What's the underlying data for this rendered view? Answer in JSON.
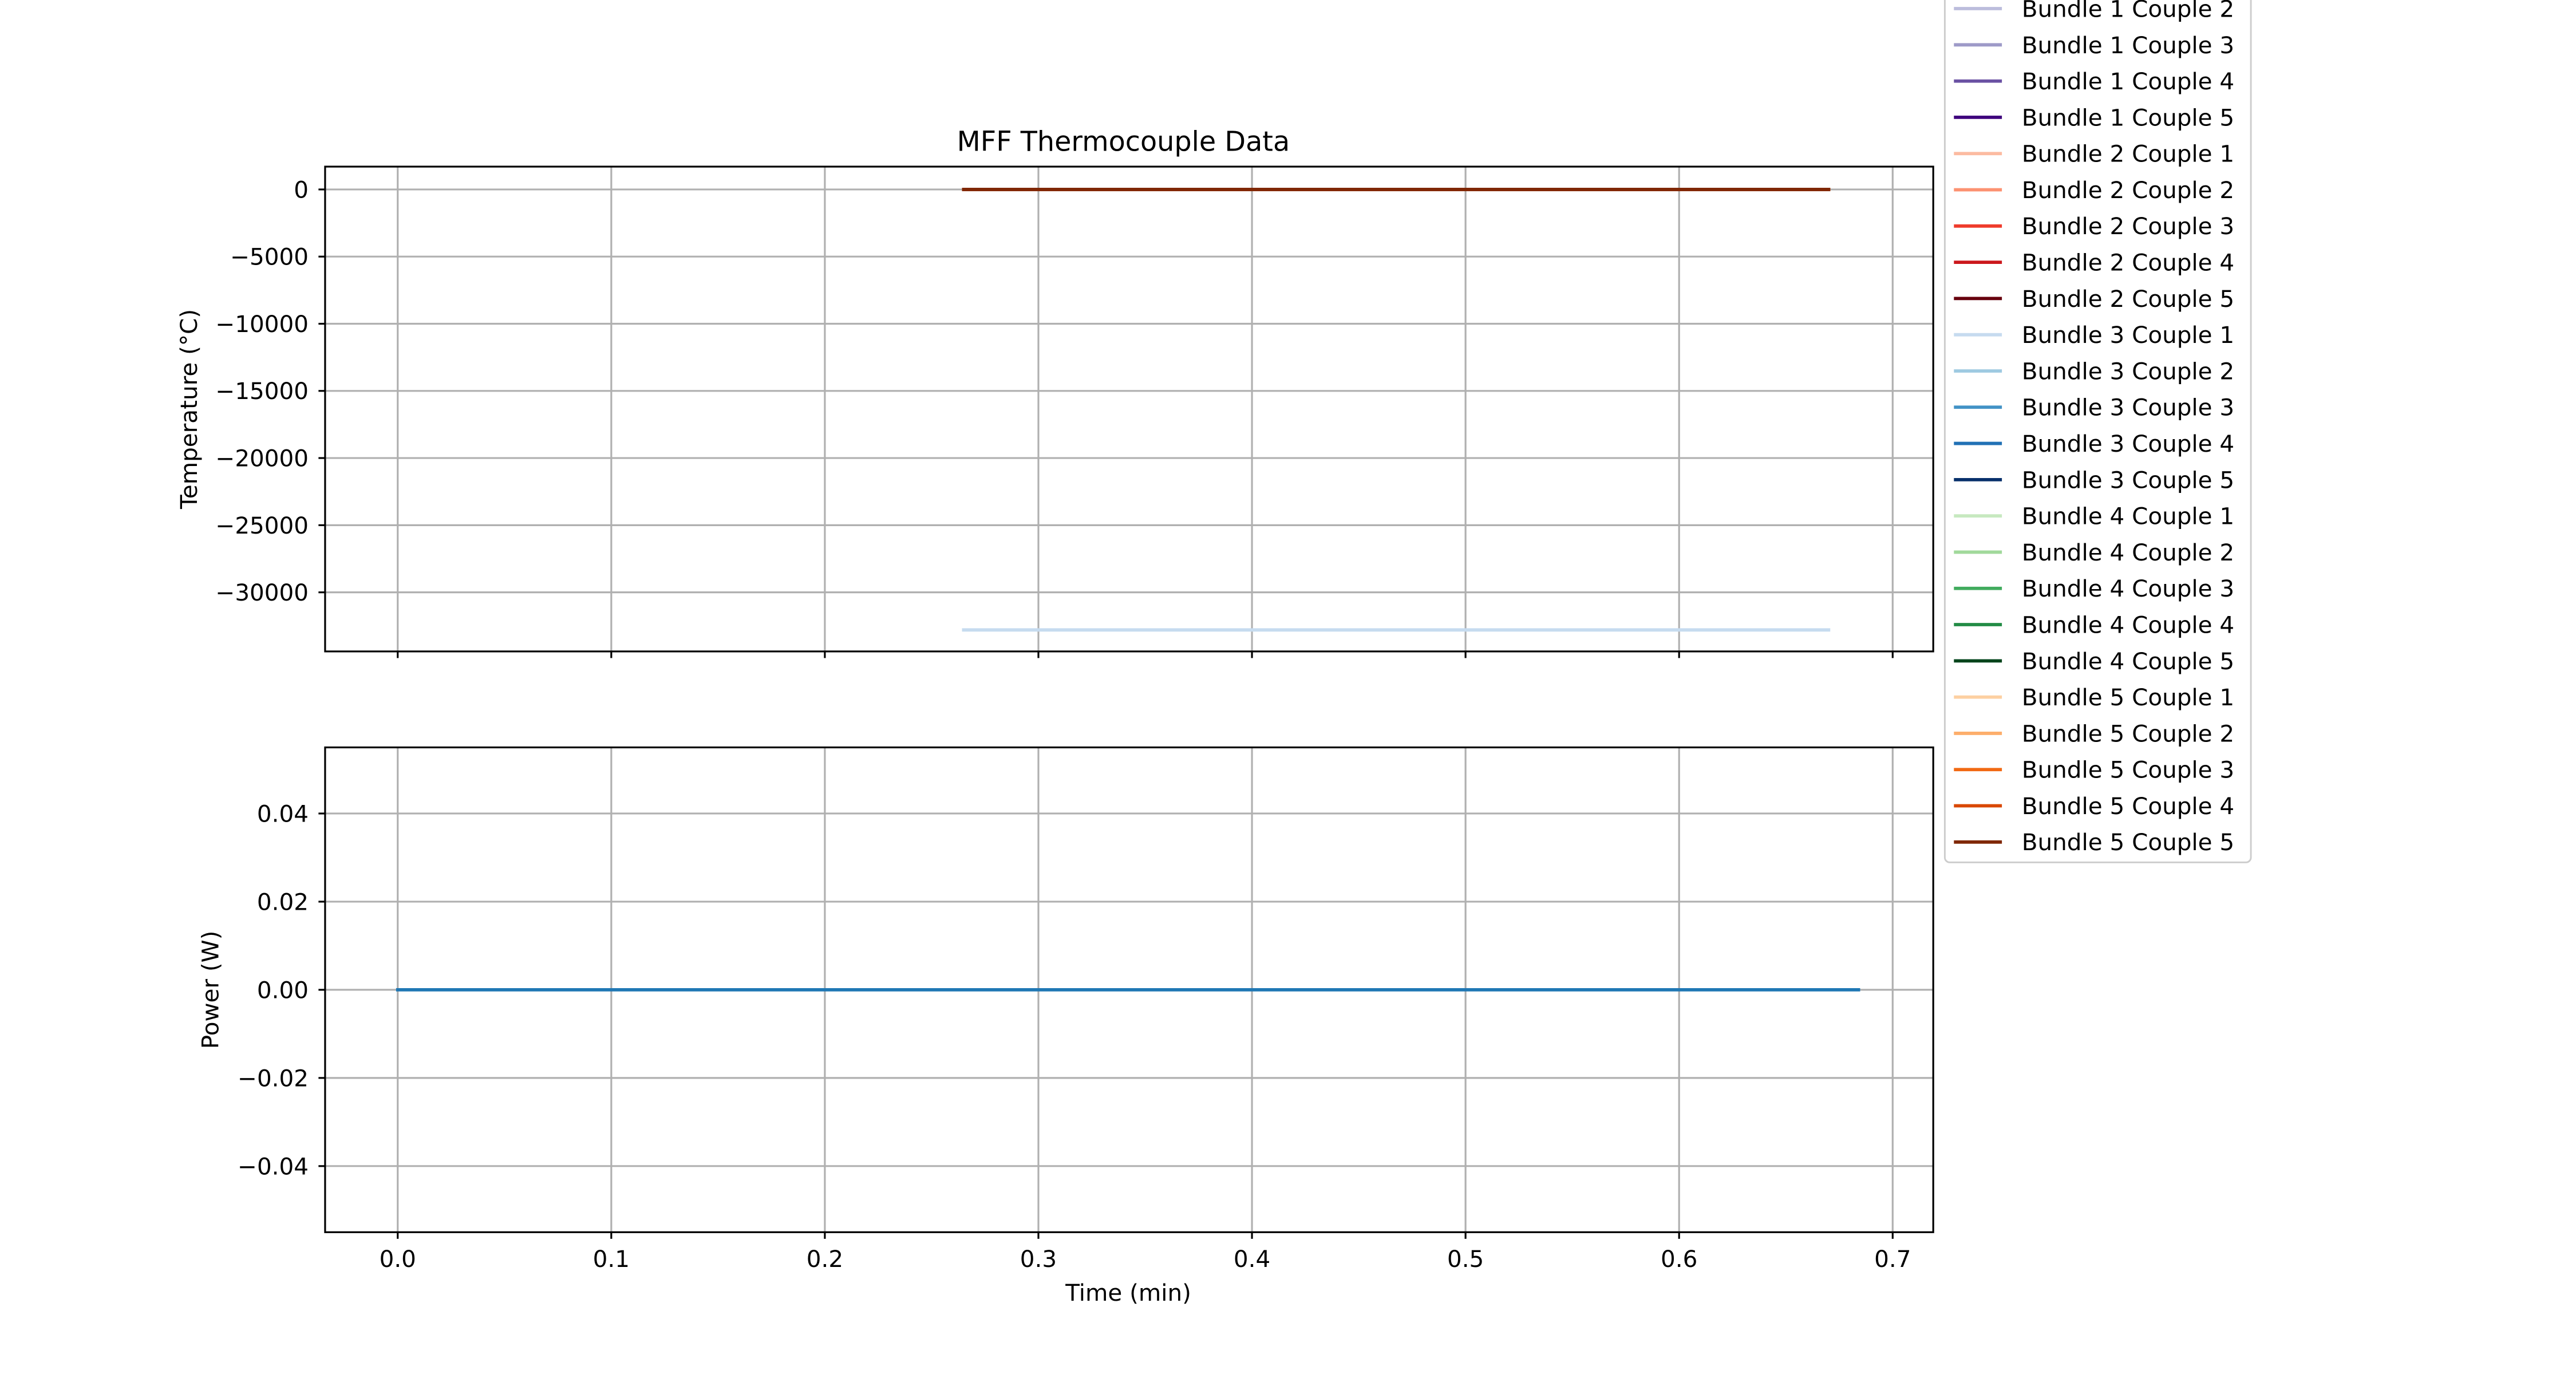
{
  "chart_data": [
    {
      "type": "line",
      "title": "MFF Thermocouple Data",
      "ylabel": "Temperature (°C)",
      "xlabel": "",
      "xlim": [
        -0.034,
        0.719
      ],
      "ylim": [
        -34400,
        1700
      ],
      "grid": true,
      "yticks": [
        0,
        -5000,
        -10000,
        -15000,
        -20000,
        -25000,
        -30000
      ],
      "ytick_labels": [
        "0",
        "−5000",
        "−10000",
        "−15000",
        "−20000",
        "−25000",
        "−30000"
      ],
      "xticks": [
        0.0,
        0.1,
        0.2,
        0.3,
        0.4,
        0.5,
        0.6,
        0.7
      ],
      "legend_position": "outside-right",
      "series": [
        {
          "name": "Bundle 1 Couple 2",
          "color": "#bcbddc",
          "x": [
            0.265,
            0.67
          ],
          "y": [
            0,
            0
          ]
        },
        {
          "name": "Bundle 1 Couple 3",
          "color": "#9e9ac8",
          "x": [
            0.265,
            0.67
          ],
          "y": [
            0,
            0
          ]
        },
        {
          "name": "Bundle 1 Couple 4",
          "color": "#6a51a3",
          "x": [
            0.265,
            0.67
          ],
          "y": [
            0,
            0
          ]
        },
        {
          "name": "Bundle 1 Couple 5",
          "color": "#3f007d",
          "x": [
            0.265,
            0.67
          ],
          "y": [
            0,
            0
          ]
        },
        {
          "name": "Bundle 2 Couple 1",
          "color": "#fcbba1",
          "x": [
            0.265,
            0.67
          ],
          "y": [
            0,
            0
          ]
        },
        {
          "name": "Bundle 2 Couple 2",
          "color": "#fc9272",
          "x": [
            0.265,
            0.67
          ],
          "y": [
            0,
            0
          ]
        },
        {
          "name": "Bundle 2 Couple 3",
          "color": "#ef3b2c",
          "x": [
            0.265,
            0.67
          ],
          "y": [
            0,
            0
          ]
        },
        {
          "name": "Bundle 2 Couple 4",
          "color": "#cb181d",
          "x": [
            0.265,
            0.67
          ],
          "y": [
            0,
            0
          ]
        },
        {
          "name": "Bundle 2 Couple 5",
          "color": "#67000d",
          "x": [
            0.265,
            0.67
          ],
          "y": [
            0,
            0
          ]
        },
        {
          "name": "Bundle 3 Couple 1",
          "color": "#c6dbef",
          "x": [
            0.265,
            0.67
          ],
          "y": [
            -32800,
            -32800
          ]
        },
        {
          "name": "Bundle 3 Couple 2",
          "color": "#9ecae1",
          "x": [
            0.265,
            0.67
          ],
          "y": [
            0,
            0
          ]
        },
        {
          "name": "Bundle 3 Couple 3",
          "color": "#4292c6",
          "x": [
            0.265,
            0.67
          ],
          "y": [
            0,
            0
          ]
        },
        {
          "name": "Bundle 3 Couple 4",
          "color": "#2171b5",
          "x": [
            0.265,
            0.67
          ],
          "y": [
            0,
            0
          ]
        },
        {
          "name": "Bundle 3 Couple 5",
          "color": "#08306b",
          "x": [
            0.265,
            0.67
          ],
          "y": [
            0,
            0
          ]
        },
        {
          "name": "Bundle 4 Couple 1",
          "color": "#c7e9c0",
          "x": [
            0.265,
            0.67
          ],
          "y": [
            0,
            0
          ]
        },
        {
          "name": "Bundle 4 Couple 2",
          "color": "#a1d99b",
          "x": [
            0.265,
            0.67
          ],
          "y": [
            0,
            0
          ]
        },
        {
          "name": "Bundle 4 Couple 3",
          "color": "#41ab5d",
          "x": [
            0.265,
            0.67
          ],
          "y": [
            0,
            0
          ]
        },
        {
          "name": "Bundle 4 Couple 4",
          "color": "#238b45",
          "x": [
            0.265,
            0.67
          ],
          "y": [
            0,
            0
          ]
        },
        {
          "name": "Bundle 4 Couple 5",
          "color": "#00441b",
          "x": [
            0.265,
            0.67
          ],
          "y": [
            0,
            0
          ]
        },
        {
          "name": "Bundle 5 Couple 1",
          "color": "#fdd0a2",
          "x": [
            0.265,
            0.67
          ],
          "y": [
            0,
            0
          ]
        },
        {
          "name": "Bundle 5 Couple 2",
          "color": "#fdae6b",
          "x": [
            0.265,
            0.67
          ],
          "y": [
            0,
            0
          ]
        },
        {
          "name": "Bundle 5 Couple 3",
          "color": "#f16913",
          "x": [
            0.265,
            0.67
          ],
          "y": [
            0,
            0
          ]
        },
        {
          "name": "Bundle 5 Couple 4",
          "color": "#d94801",
          "x": [
            0.265,
            0.67
          ],
          "y": [
            0,
            0
          ]
        },
        {
          "name": "Bundle 5 Couple 5",
          "color": "#7f2704",
          "x": [
            0.265,
            0.67
          ],
          "y": [
            0,
            0
          ]
        }
      ]
    },
    {
      "type": "line",
      "title": "",
      "ylabel": "Power (W)",
      "xlabel": "Time (min)",
      "xlim": [
        -0.034,
        0.719
      ],
      "ylim": [
        -0.055,
        0.055
      ],
      "grid": true,
      "yticks": [
        0.04,
        0.02,
        0.0,
        -0.02,
        -0.04
      ],
      "ytick_labels": [
        "0.04",
        "0.02",
        "0.00",
        "−0.02",
        "−0.04"
      ],
      "xticks": [
        0.0,
        0.1,
        0.2,
        0.3,
        0.4,
        0.5,
        0.6,
        0.7
      ],
      "xtick_labels": [
        "0.0",
        "0.1",
        "0.2",
        "0.3",
        "0.4",
        "0.5",
        "0.6",
        "0.7"
      ],
      "series": [
        {
          "color": "#1f77b4",
          "x": [
            0.0,
            0.684
          ],
          "y": [
            0,
            0
          ]
        }
      ]
    }
  ]
}
